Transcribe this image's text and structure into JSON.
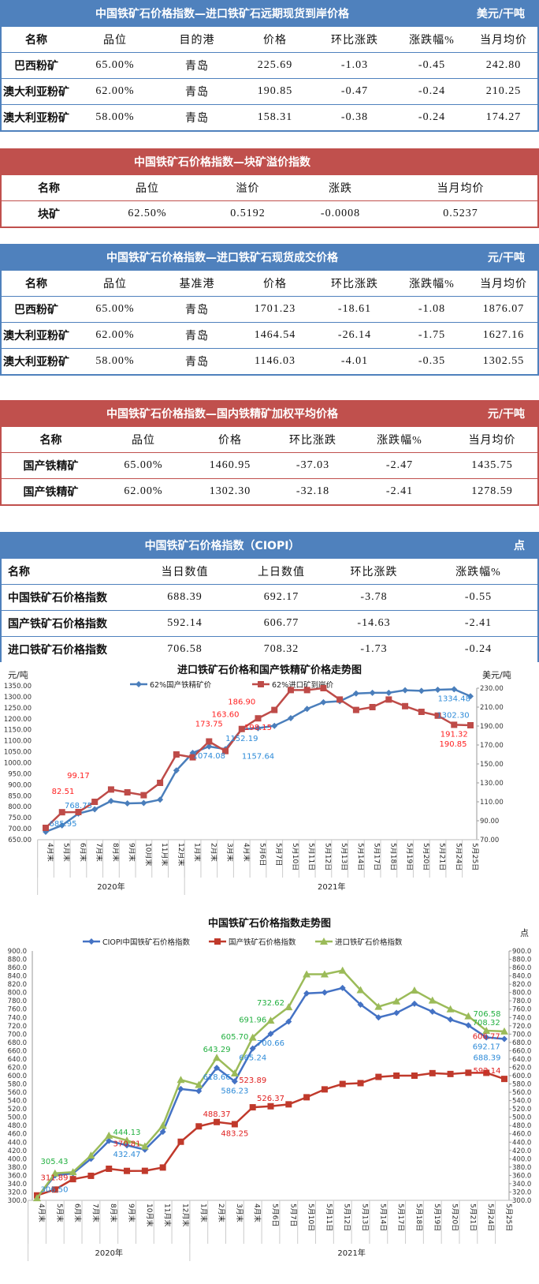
{
  "tables": [
    {
      "title": "中国铁矿石价格指数—进口铁矿石远期现货到岸价格",
      "unit": "美元/干吨",
      "color": "#4f81bd",
      "headers": [
        "名称",
        "品位",
        "目的港",
        "价格",
        "环比涨跌",
        "涨跌幅%",
        "当月均价"
      ],
      "rows": [
        [
          "巴西粉矿",
          "65.00%",
          "青岛",
          "225.69",
          "-1.03",
          "-0.45",
          "242.80"
        ],
        [
          "澳大利亚粉矿",
          "62.00%",
          "青岛",
          "190.85",
          "-0.47",
          "-0.24",
          "210.25"
        ],
        [
          "澳大利亚粉矿",
          "58.00%",
          "青岛",
          "158.31",
          "-0.38",
          "-0.24",
          "174.27"
        ]
      ]
    },
    {
      "title": "中国铁矿石价格指数—块矿溢价指数",
      "unit": "",
      "color": "#c0504d",
      "headers": [
        "名称",
        "品位",
        "溢价",
        "涨跌",
        "当月均价"
      ],
      "rows": [
        [
          "块矿",
          "62.50%",
          "0.5192",
          "-0.0008",
          "0.5237"
        ]
      ]
    },
    {
      "title": "中国铁矿石价格指数—进口铁矿石现货成交价格",
      "unit": "元/干吨",
      "color": "#4f81bd",
      "headers": [
        "名称",
        "品位",
        "基准港",
        "价格",
        "环比涨跌",
        "涨跌幅%",
        "当月均价"
      ],
      "rows": [
        [
          "巴西粉矿",
          "65.00%",
          "青岛",
          "1701.23",
          "-18.61",
          "-1.08",
          "1876.07"
        ],
        [
          "澳大利亚粉矿",
          "62.00%",
          "青岛",
          "1464.54",
          "-26.14",
          "-1.75",
          "1627.16"
        ],
        [
          "澳大利亚粉矿",
          "58.00%",
          "青岛",
          "1146.03",
          "-4.01",
          "-0.35",
          "1302.55"
        ]
      ]
    },
    {
      "title": "中国铁矿石价格指数—国内铁精矿加权平均价格",
      "unit": "元/干吨",
      "color": "#c0504d",
      "headers": [
        "名称",
        "品位",
        "价格",
        "环比涨跌",
        "涨跌幅%",
        "当月均价"
      ],
      "rows": [
        [
          "国产铁精矿",
          "65.00%",
          "1460.95",
          "-37.03",
          "-2.47",
          "1435.75"
        ],
        [
          "国产铁精矿",
          "62.00%",
          "1302.30",
          "-32.18",
          "-2.41",
          "1278.59"
        ]
      ]
    },
    {
      "title": "中国铁矿石价格指数（CIOPI）",
      "unit": "点",
      "color": "#4f81bd",
      "headers": [
        "名称",
        "当日数值",
        "上日数值",
        "环比涨跌",
        "涨跌幅%"
      ],
      "rows": [
        [
          "中国铁矿石价格指数",
          "688.39",
          "692.17",
          "-3.78",
          "-0.55"
        ],
        [
          "国产铁矿石价格指数",
          "592.14",
          "606.77",
          "-14.63",
          "-2.41"
        ],
        [
          "进口铁矿石价格指数",
          "706.58",
          "708.32",
          "-1.73",
          "-0.24"
        ]
      ]
    }
  ],
  "chart_data": [
    {
      "type": "line",
      "title": "进口铁矿石价格和国产铁精矿价格走势图",
      "ylabel_left": "元/吨",
      "ylabel_right": "美元/吨",
      "categories": [
        "4月末",
        "5月末",
        "6月末",
        "7月末",
        "8月末",
        "9月末",
        "10月末",
        "11月末",
        "12月末",
        "1月末",
        "2月末",
        "3月末",
        "4月末",
        "5月6日",
        "5月7日",
        "5月10日",
        "5月11日",
        "5月12日",
        "5月13日",
        "5月14日",
        "5月17日",
        "5月18日",
        "5月19日",
        "5月20日",
        "5月21日",
        "5月24日",
        "5月25日"
      ],
      "year_groups": [
        {
          "label": "2020年",
          "count": 9
        },
        {
          "label": "2021年",
          "count": 18
        }
      ],
      "ylim_left": [
        650,
        1350
      ],
      "ystep_left": 50,
      "ylim_right": [
        70,
        230
      ],
      "ystep_right": 20,
      "grid": false,
      "legend": "top",
      "series": [
        {
          "name": "62%国产铁精矿价",
          "axis": "left",
          "color": "#4a7ebb",
          "label_color": "#2e8bd8",
          "marker": "diamond",
          "values": [
            685.95,
            715,
            768.75,
            788,
            826,
            815,
            817,
            832,
            965,
            1045,
            1074.08,
            1062,
            1152.19,
            1157.64,
            1168,
            1203,
            1245,
            1275,
            1280,
            1315,
            1318,
            1318,
            1330,
            1327,
            1332,
            1334.48,
            1302.3
          ],
          "labeled": [
            0,
            2,
            10,
            12,
            13,
            25,
            26
          ]
        },
        {
          "name": "62%进口矿到岸价",
          "axis": "right",
          "color": "#be4b48",
          "label_color": "#ff2020",
          "marker": "square",
          "values": [
            82.51,
            99,
            99.17,
            110,
            123,
            120,
            117,
            130,
            160,
            157,
            173.75,
            163.6,
            186.9,
            198.15,
            207,
            228,
            228,
            230,
            218,
            207,
            210,
            218,
            211,
            205,
            201,
            191.32,
            190.85
          ],
          "labeled": [
            0,
            2,
            10,
            11,
            12,
            13,
            25,
            26
          ]
        }
      ]
    },
    {
      "type": "line",
      "title": "中国铁矿石价格指数走势图",
      "ylabel_right": "点",
      "categories": [
        "4月末",
        "5月末",
        "6月末",
        "7月末",
        "8月末",
        "9月末",
        "10月末",
        "11月末",
        "12月末",
        "1月末",
        "2月末",
        "3月末",
        "4月末",
        "5月6日",
        "5月7日",
        "5月10日",
        "5月11日",
        "5月12日",
        "5月13日",
        "5月14日",
        "5月17日",
        "5月18日",
        "5月19日",
        "5月20日",
        "5月21日",
        "5月24日",
        "5月25日"
      ],
      "year_groups": [
        {
          "label": "2020年",
          "count": 9
        },
        {
          "label": "2021年",
          "count": 18
        }
      ],
      "ylim": [
        300,
        900
      ],
      "ystep": 20,
      "grid": false,
      "legend": "top",
      "series": [
        {
          "name": "CIOPI中国铁矿石价格指数",
          "color": "#4472c4",
          "label_color": "#2e8bd8",
          "marker": "diamond",
          "values": [
            306.5,
            360,
            365,
            400,
            443,
            432.47,
            422,
            465,
            568,
            563,
            618.66,
            586.23,
            665.24,
            700.66,
            730,
            798,
            800,
            811,
            771,
            740,
            751,
            773,
            754,
            735,
            721,
            692.17,
            688.39
          ],
          "labeled": [
            0,
            5,
            10,
            11,
            12,
            13,
            25,
            26
          ]
        },
        {
          "name": "国产铁矿石价格指数",
          "color": "#c0392b",
          "label_color": "#e02020",
          "marker": "square",
          "values": [
            311.89,
            326,
            351,
            359,
            376,
            370.81,
            371,
            379,
            441,
            478,
            488.37,
            483.25,
            523.89,
            526.37,
            531,
            548,
            567,
            580,
            582,
            597,
            600,
            600,
            606,
            604,
            607,
            606.77,
            592.14
          ],
          "labeled": [
            0,
            5,
            10,
            11,
            12,
            13,
            25,
            26
          ]
        },
        {
          "name": "进口铁矿石价格指数",
          "color": "#9bbb59",
          "label_color": "#22b040",
          "marker": "triangle",
          "values": [
            305.43,
            365,
            368,
            408,
            456,
            444.13,
            430,
            480,
            590,
            578,
            643.29,
            605.7,
            691.96,
            732.62,
            765,
            844,
            844,
            853,
            806,
            766,
            779,
            805,
            781,
            760,
            743,
            708.32,
            706.58
          ],
          "labeled": [
            0,
            5,
            10,
            11,
            12,
            13,
            25,
            26
          ]
        }
      ]
    }
  ]
}
